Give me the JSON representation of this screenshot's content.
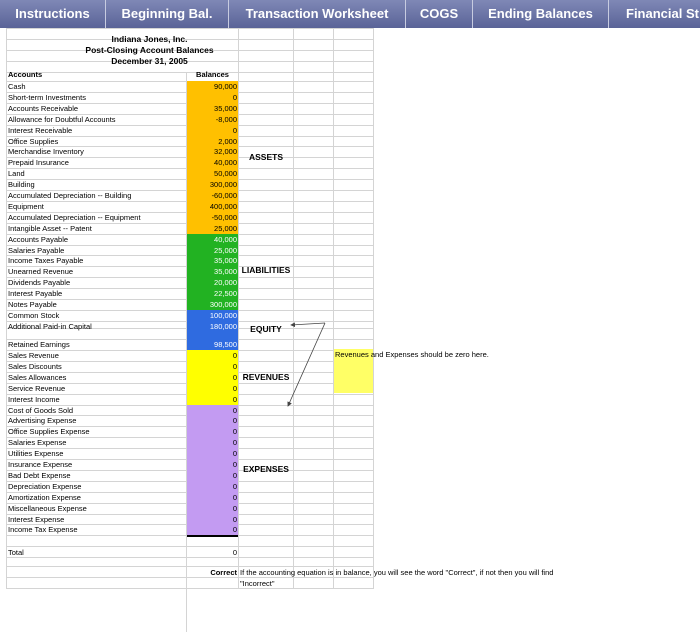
{
  "tabs": [
    {
      "label": "Instructions"
    },
    {
      "label": "Beginning Bal."
    },
    {
      "label": "Transaction Worksheet"
    },
    {
      "label": "COGS"
    },
    {
      "label": "Ending Balances"
    },
    {
      "label": "Financial St"
    }
  ],
  "sheet": {
    "company": "Indiana Jones, Inc.",
    "title": "Post-Closing Account Balances",
    "date": "December 31, 2005",
    "col_accounts": "Accounts",
    "col_balances": "Balances",
    "colors": {
      "assets": "#ffc000",
      "liabilities": "#22b222",
      "equity": "#2f6be0",
      "revenues": "#ffff00",
      "expenses": "#c39bf2",
      "note": "#ffff66"
    },
    "sections": {
      "assets": "ASSETS",
      "liabilities": "LIABILITIES",
      "equity": "EQUITY",
      "revenues": "REVENUES",
      "expenses": "EXPENSES"
    },
    "note": "Revenues and Expenses should be zero here.",
    "total_label": "Total",
    "total_value": "0",
    "check_value": "Correct",
    "check_note_1": "If the accounting equation is in balance, you will see the word \"Correct\", if not then you will find",
    "check_note_2": "\"Incorrect\""
  },
  "accounts": [
    {
      "name": "Cash",
      "value": "90,000"
    },
    {
      "name": "Short-term Investments",
      "value": "0"
    },
    {
      "name": "Accounts Receivable",
      "value": "35,000"
    },
    {
      "name": "Allowance for Doubtful Accounts",
      "value": "-8,000"
    },
    {
      "name": "Interest Receivable",
      "value": "0"
    },
    {
      "name": "Office Supplies",
      "value": "2,000"
    },
    {
      "name": "Merchandise Inventory",
      "value": "32,000"
    },
    {
      "name": "Prepaid Insurance",
      "value": "40,000"
    },
    {
      "name": "Land",
      "value": "50,000"
    },
    {
      "name": "Building",
      "value": "300,000"
    },
    {
      "name": "Accumulated Depreciation -- Building",
      "value": "-60,000"
    },
    {
      "name": "Equipment",
      "value": "400,000"
    },
    {
      "name": "Accumulated Depreciation -- Equipment",
      "value": "-50,000"
    },
    {
      "name": "Intangible Asset -- Patent",
      "value": "25,000"
    },
    {
      "name": "Accounts Payable",
      "value": "40,000"
    },
    {
      "name": "Salaries Payable",
      "value": "25,000"
    },
    {
      "name": "Income Taxes Payable",
      "value": "35,000"
    },
    {
      "name": "Unearned Revenue",
      "value": "35,000"
    },
    {
      "name": "Dividends Payable",
      "value": "20,000"
    },
    {
      "name": "Interest Payable",
      "value": "22,500"
    },
    {
      "name": "Notes Payable",
      "value": "300,000"
    },
    {
      "name": "Common Stock",
      "value": "100,000"
    },
    {
      "name": "Additional Paid-in Capital",
      "value": "180,000"
    },
    {
      "name": "Retained Earnings",
      "value": "98,500"
    },
    {
      "name": "Sales Revenue",
      "value": "0"
    },
    {
      "name": "Sales Discounts",
      "value": "0"
    },
    {
      "name": "Sales Allowances",
      "value": "0"
    },
    {
      "name": "Service Revenue",
      "value": "0"
    },
    {
      "name": "Interest Income",
      "value": "0"
    },
    {
      "name": "Cost of Goods Sold",
      "value": "0"
    },
    {
      "name": "Advertising Expense",
      "value": "0"
    },
    {
      "name": "Office Supplies Expense",
      "value": "0"
    },
    {
      "name": "Salaries Expense",
      "value": "0"
    },
    {
      "name": "Utilities Expense",
      "value": "0"
    },
    {
      "name": "Insurance Expense",
      "value": "0"
    },
    {
      "name": "Bad Debt Expense",
      "value": "0"
    },
    {
      "name": "Depreciation Expense",
      "value": "0"
    },
    {
      "name": "Amortization Expense",
      "value": "0"
    },
    {
      "name": "Miscellaneous Expense",
      "value": "0"
    },
    {
      "name": "Interest Expense",
      "value": "0"
    },
    {
      "name": "Income Tax Expense",
      "value": "0"
    }
  ]
}
